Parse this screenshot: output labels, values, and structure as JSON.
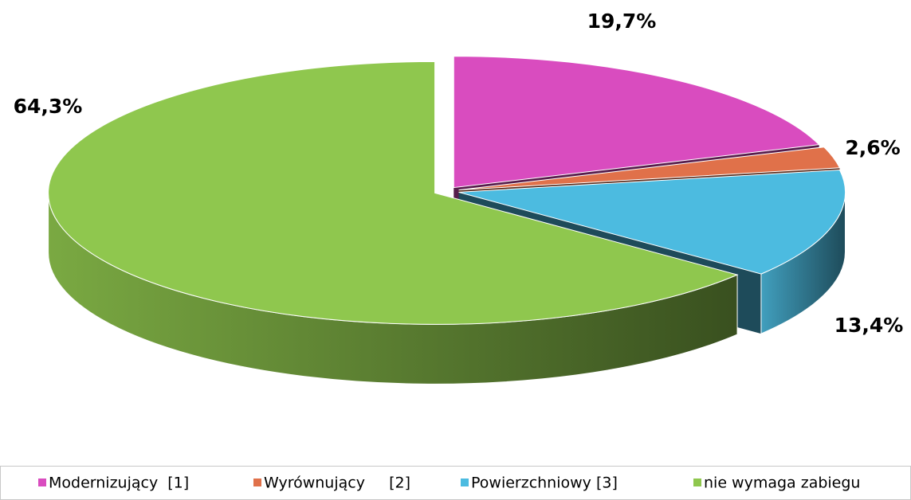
{
  "chart_data": {
    "type": "pie3d",
    "categories": [
      "Modernizujący  [1]",
      "Wyrównujący     [2]",
      "Powierzchniowy [3]",
      "nie wymaga zabiegu"
    ],
    "values": [
      19.7,
      2.6,
      13.4,
      64.3
    ],
    "value_labels": [
      "19,7%",
      "2,6%",
      "13,4%",
      "64,3%"
    ],
    "colors": [
      "#d94cbf",
      "#e0714a",
      "#4cbbe0",
      "#8fc74e"
    ],
    "legend": "bottom"
  }
}
